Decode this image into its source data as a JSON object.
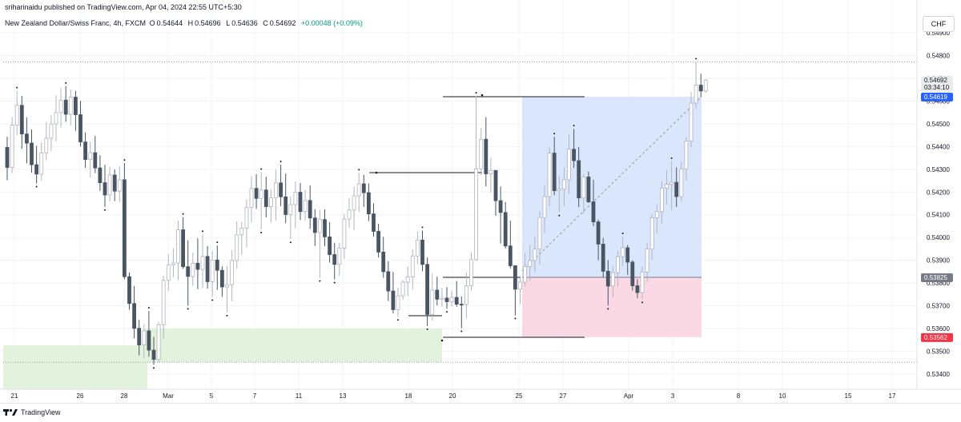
{
  "publisher_line": "sriharinaidu published on TradingView.com, Apr 04, 2024 22:55 UTC+5:30",
  "legend": {
    "symbol": "New Zealand Dollar/Swiss Franc, 4h, FXCM",
    "open_label": "O",
    "open": "0.54644",
    "high_label": "H",
    "high": "0.54696",
    "low_label": "L",
    "low": "0.54636",
    "close_label": "C",
    "close": "0.54692",
    "change": "+0.00048 (+0.09%)"
  },
  "currency_button": "CHF",
  "footer_brand": "TradingView",
  "colors": {
    "bull": "#b2b5be",
    "bear": "#4a5563",
    "long_profit": "#dae6fc",
    "long_stop": "#fbd9e4",
    "demand_zone": "#e3f2dd",
    "price_badge": "#ebebeb",
    "target_badge": "#2962ff",
    "stop_badge": "#f23645",
    "entry_badge": "#787b86"
  },
  "chart_data": {
    "type": "candlestick",
    "y_ticks": [
      "0.53400",
      "0.53500",
      "0.53600",
      "0.53700",
      "0.53800",
      "0.53900",
      "0.54000",
      "0.54100",
      "0.54200",
      "0.54300",
      "0.54400",
      "0.54500",
      "0.54600",
      "0.54700",
      "0.54800",
      "0.54900"
    ],
    "x_ticks": [
      "21",
      "26",
      "28",
      "Mar",
      "5",
      "7",
      "11",
      "13",
      "18",
      "20",
      "25",
      "27",
      "Apr",
      "3",
      "8",
      "10",
      "15",
      "17"
    ],
    "price_labels": {
      "current": "0.54692",
      "countdown": "03:34:10",
      "target": "0.54619",
      "entry": "0.53825",
      "stop": "0.53562"
    },
    "levels": {
      "swing_high_dotted": 0.54772,
      "support_dotted": 0.53452,
      "entry": 0.53825,
      "target": 0.54619,
      "stop": 0.53562
    },
    "candles": [
      [
        0.54396,
        0.54443,
        0.54252,
        0.54308
      ],
      [
        0.54308,
        0.54531,
        0.54283,
        0.54494
      ],
      [
        0.54494,
        0.54645,
        0.5445,
        0.54581
      ],
      [
        0.54581,
        0.54623,
        0.5439,
        0.54455
      ],
      [
        0.54455,
        0.54528,
        0.54326,
        0.54415
      ],
      [
        0.54415,
        0.54475,
        0.54285,
        0.5432
      ],
      [
        0.5432,
        0.54403,
        0.54238,
        0.54279
      ],
      [
        0.54279,
        0.5442,
        0.5425,
        0.54372
      ],
      [
        0.54372,
        0.54508,
        0.54339,
        0.54436
      ],
      [
        0.54436,
        0.54539,
        0.5438,
        0.54499
      ],
      [
        0.54499,
        0.54625,
        0.54421,
        0.54549
      ],
      [
        0.54549,
        0.54658,
        0.54483,
        0.54604
      ],
      [
        0.54604,
        0.54665,
        0.54509,
        0.54542
      ],
      [
        0.54542,
        0.54651,
        0.54492,
        0.54617
      ],
      [
        0.54617,
        0.54645,
        0.54469,
        0.5454
      ],
      [
        0.5454,
        0.54601,
        0.544,
        0.5442
      ],
      [
        0.5442,
        0.54462,
        0.54306,
        0.54343
      ],
      [
        0.54343,
        0.54422,
        0.54264,
        0.54373
      ],
      [
        0.54373,
        0.54447,
        0.54283,
        0.54306
      ],
      [
        0.54306,
        0.54362,
        0.54205,
        0.54241
      ],
      [
        0.54241,
        0.5432,
        0.54135,
        0.54187
      ],
      [
        0.54187,
        0.54312,
        0.54159,
        0.54275
      ],
      [
        0.54275,
        0.54299,
        0.5416,
        0.54204
      ],
      [
        0.54204,
        0.54315,
        0.54156,
        0.54254
      ],
      [
        0.54254,
        0.54327,
        0.53817,
        0.53828
      ],
      [
        0.53828,
        0.53846,
        0.53683,
        0.5371
      ],
      [
        0.5371,
        0.53787,
        0.53557,
        0.53601
      ],
      [
        0.53601,
        0.53638,
        0.53482,
        0.53528
      ],
      [
        0.53528,
        0.5362,
        0.53468,
        0.5359
      ],
      [
        0.5359,
        0.53677,
        0.53476,
        0.53505
      ],
      [
        0.53505,
        0.53564,
        0.53441,
        0.53464
      ],
      [
        0.53464,
        0.53629,
        0.53451,
        0.53617
      ],
      [
        0.53617,
        0.53832,
        0.53555,
        0.53812
      ],
      [
        0.53812,
        0.53926,
        0.53766,
        0.5388
      ],
      [
        0.5388,
        0.53953,
        0.53827,
        0.53888
      ],
      [
        0.53888,
        0.54075,
        0.53814,
        0.54034
      ],
      [
        0.54034,
        0.5409,
        0.53862,
        0.53872
      ],
      [
        0.53872,
        0.53988,
        0.53701,
        0.53829
      ],
      [
        0.53829,
        0.53933,
        0.53787,
        0.53887
      ],
      [
        0.53887,
        0.53996,
        0.53773,
        0.5386
      ],
      [
        0.5386,
        0.54014,
        0.53777,
        0.53917
      ],
      [
        0.53917,
        0.53963,
        0.53776,
        0.53806
      ],
      [
        0.53806,
        0.53941,
        0.53739,
        0.53901
      ],
      [
        0.53901,
        0.53965,
        0.5377,
        0.53856
      ],
      [
        0.53856,
        0.53874,
        0.53739,
        0.53783
      ],
      [
        0.53783,
        0.53875,
        0.53671,
        0.53793
      ],
      [
        0.53793,
        0.53943,
        0.5372,
        0.53899
      ],
      [
        0.53899,
        0.54071,
        0.53862,
        0.54012
      ],
      [
        0.54012,
        0.54068,
        0.53923,
        0.54041
      ],
      [
        0.54041,
        0.54167,
        0.53956,
        0.54132
      ],
      [
        0.54132,
        0.5427,
        0.54066,
        0.54216
      ],
      [
        0.54216,
        0.54278,
        0.54126,
        0.54172
      ],
      [
        0.54172,
        0.54287,
        0.54036,
        0.54209
      ],
      [
        0.54209,
        0.54267,
        0.54089,
        0.54136
      ],
      [
        0.54136,
        0.54212,
        0.54066,
        0.54174
      ],
      [
        0.54174,
        0.54298,
        0.54076,
        0.5424
      ],
      [
        0.5424,
        0.5432,
        0.54138,
        0.54179
      ],
      [
        0.54179,
        0.54281,
        0.54063,
        0.54101
      ],
      [
        0.54101,
        0.54182,
        0.53993,
        0.54145
      ],
      [
        0.54145,
        0.54246,
        0.5404,
        0.54199
      ],
      [
        0.54199,
        0.5424,
        0.54077,
        0.54114
      ],
      [
        0.54114,
        0.54209,
        0.54074,
        0.54163
      ],
      [
        0.54163,
        0.54229,
        0.54038,
        0.54086
      ],
      [
        0.54086,
        0.54125,
        0.53963,
        0.54022
      ],
      [
        0.54022,
        0.54122,
        0.53823,
        0.54079
      ],
      [
        0.54079,
        0.54124,
        0.53962,
        0.54003
      ],
      [
        0.54003,
        0.54068,
        0.5389,
        0.53925
      ],
      [
        0.53925,
        0.53977,
        0.53816,
        0.53882
      ],
      [
        0.53882,
        0.53976,
        0.53831,
        0.53953
      ],
      [
        0.53953,
        0.54104,
        0.53906,
        0.54081
      ],
      [
        0.54081,
        0.54173,
        0.54043,
        0.54121
      ],
      [
        0.54121,
        0.54224,
        0.54032,
        0.54183
      ],
      [
        0.54183,
        0.54284,
        0.54111,
        0.54236
      ],
      [
        0.54236,
        0.54276,
        0.54135,
        0.54197
      ],
      [
        0.54197,
        0.54238,
        0.54072,
        0.54104
      ],
      [
        0.54104,
        0.5415,
        0.54004,
        0.54027
      ],
      [
        0.54027,
        0.5406,
        0.53912,
        0.53936
      ],
      [
        0.53936,
        0.54003,
        0.53823,
        0.5385
      ],
      [
        0.5385,
        0.53896,
        0.53721,
        0.53765
      ],
      [
        0.53765,
        0.53849,
        0.53666,
        0.53683
      ],
      [
        0.53683,
        0.5378,
        0.53652,
        0.53744
      ],
      [
        0.53744,
        0.53813,
        0.53726,
        0.53804
      ],
      [
        0.53804,
        0.53872,
        0.53743,
        0.53827
      ],
      [
        0.53827,
        0.53947,
        0.53771,
        0.53919
      ],
      [
        0.53919,
        0.54027,
        0.53882,
        0.53989
      ],
      [
        0.53989,
        0.54031,
        0.53852,
        0.53882
      ],
      [
        0.53882,
        0.53912,
        0.53611,
        0.53662
      ],
      [
        0.53662,
        0.53842,
        0.53635,
        0.53769
      ],
      [
        0.53769,
        0.53828,
        0.53702,
        0.53729
      ],
      [
        0.53729,
        0.53778,
        0.53696,
        0.53734
      ],
      [
        0.53734,
        0.53782,
        0.53687,
        0.53718
      ],
      [
        0.53718,
        0.53767,
        0.53697,
        0.53737
      ],
      [
        0.53737,
        0.53809,
        0.53696,
        0.53707
      ],
      [
        0.53707,
        0.53741,
        0.53602,
        0.53706
      ],
      [
        0.53706,
        0.53847,
        0.53647,
        0.53788
      ],
      [
        0.53788,
        0.53936,
        0.53766,
        0.53903
      ],
      [
        0.53903,
        0.54622,
        0.53897,
        0.54302
      ],
      [
        0.54302,
        0.54481,
        0.54275,
        0.54432
      ],
      [
        0.54432,
        0.54529,
        0.54224,
        0.5428
      ],
      [
        0.5428,
        0.54352,
        0.54198,
        0.54295
      ],
      [
        0.54295,
        0.54296,
        0.54096,
        0.54162
      ],
      [
        0.54162,
        0.54224,
        0.53974,
        0.5411
      ],
      [
        0.5411,
        0.54156,
        0.53952,
        0.53963
      ],
      [
        0.53963,
        0.54074,
        0.53864,
        0.53876
      ],
      [
        0.53876,
        0.53878,
        0.53658,
        0.53773
      ],
      [
        0.53773,
        0.53824,
        0.53707,
        0.53804
      ],
      [
        0.53804,
        0.5393,
        0.53784,
        0.53873
      ],
      [
        0.53873,
        0.53968,
        0.53811,
        0.53899
      ],
      [
        0.53899,
        0.54004,
        0.53846,
        0.53949
      ],
      [
        0.53949,
        0.54115,
        0.53882,
        0.54088
      ],
      [
        0.54088,
        0.5423,
        0.54021,
        0.5418
      ],
      [
        0.5418,
        0.54397,
        0.54138,
        0.54371
      ],
      [
        0.54371,
        0.54443,
        0.54186,
        0.54206
      ],
      [
        0.54206,
        0.54274,
        0.54111,
        0.54213
      ],
      [
        0.54213,
        0.54309,
        0.54138,
        0.54254
      ],
      [
        0.54254,
        0.54455,
        0.54192,
        0.54388
      ],
      [
        0.54388,
        0.54478,
        0.54306,
        0.54338
      ],
      [
        0.54338,
        0.54398,
        0.54134,
        0.54174
      ],
      [
        0.54174,
        0.54278,
        0.54106,
        0.54266
      ],
      [
        0.54266,
        0.5429,
        0.54152,
        0.54157
      ],
      [
        0.54157,
        0.54254,
        0.5405,
        0.54069
      ],
      [
        0.54069,
        0.54079,
        0.539,
        0.53971
      ],
      [
        0.53971,
        0.53999,
        0.53826,
        0.53852
      ],
      [
        0.53852,
        0.53901,
        0.53701,
        0.53787
      ],
      [
        0.53787,
        0.53873,
        0.53737,
        0.53846
      ],
      [
        0.53846,
        0.53943,
        0.53785,
        0.53916
      ],
      [
        0.53916,
        0.54004,
        0.53876,
        0.53955
      ],
      [
        0.53955,
        0.53967,
        0.53837,
        0.53892
      ],
      [
        0.53892,
        0.539,
        0.53767,
        0.53788
      ],
      [
        0.53788,
        0.53817,
        0.53733,
        0.53758
      ],
      [
        0.53758,
        0.53873,
        0.53729,
        0.53848
      ],
      [
        0.53848,
        0.53975,
        0.53803,
        0.53949
      ],
      [
        0.53949,
        0.54101,
        0.53902,
        0.54087
      ],
      [
        0.54087,
        0.54146,
        0.54019,
        0.54114
      ],
      [
        0.54114,
        0.54248,
        0.54061,
        0.54217
      ],
      [
        0.54217,
        0.54296,
        0.54146,
        0.54234
      ],
      [
        0.54234,
        0.54335,
        0.54121,
        0.54243
      ],
      [
        0.54243,
        0.54309,
        0.54134,
        0.5418
      ],
      [
        0.5418,
        0.54335,
        0.5416,
        0.54302
      ],
      [
        0.54302,
        0.54442,
        0.54251,
        0.54424
      ],
      [
        0.54424,
        0.5464,
        0.54397,
        0.54591
      ],
      [
        0.54591,
        0.54772,
        0.54567,
        0.5467
      ],
      [
        0.5467,
        0.5472,
        0.54618,
        0.54644
      ],
      [
        0.54644,
        0.54696,
        0.54636,
        0.54692
      ]
    ]
  }
}
